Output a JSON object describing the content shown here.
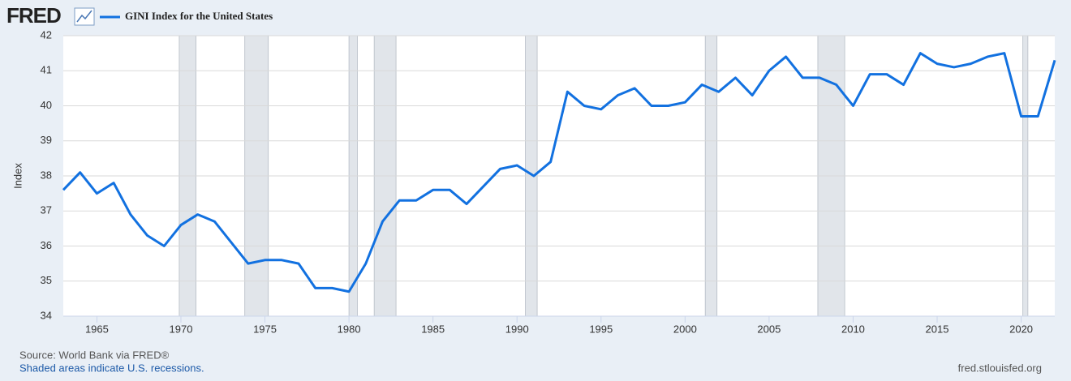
{
  "chart_data": {
    "type": "line",
    "logo": "FRED",
    "y_label": "Index",
    "source": "Source: World Bank via FRED®",
    "note": "Shaded areas indicate U.S. recessions.",
    "site": "fred.stlouisfed.org",
    "x": [
      1963,
      1964,
      1965,
      1966,
      1967,
      1968,
      1969,
      1970,
      1971,
      1972,
      1973,
      1974,
      1975,
      1976,
      1977,
      1978,
      1979,
      1980,
      1981,
      1982,
      1983,
      1984,
      1985,
      1986,
      1987,
      1988,
      1989,
      1990,
      1991,
      1992,
      1993,
      1994,
      1995,
      1996,
      1997,
      1998,
      1999,
      2000,
      2001,
      2002,
      2003,
      2004,
      2005,
      2006,
      2007,
      2008,
      2009,
      2010,
      2011,
      2012,
      2013,
      2014,
      2015,
      2016,
      2017,
      2018,
      2019,
      2020,
      2021,
      2022
    ],
    "series": [
      {
        "name": "GINI Index for the United States",
        "color": "#1271e0",
        "values": [
          37.6,
          38.1,
          37.5,
          37.8,
          36.9,
          36.3,
          36.0,
          36.6,
          36.9,
          36.7,
          36.1,
          35.5,
          35.6,
          35.6,
          35.5,
          34.8,
          34.8,
          34.7,
          35.5,
          36.7,
          37.3,
          37.3,
          37.6,
          37.6,
          37.2,
          37.7,
          38.2,
          38.3,
          38.0,
          38.4,
          40.4,
          40.0,
          39.9,
          40.3,
          40.5,
          40.0,
          40.0,
          40.1,
          40.6,
          40.4,
          40.8,
          40.3,
          41.0,
          41.4,
          40.8,
          40.8,
          40.6,
          40.0,
          40.9,
          40.9,
          40.6,
          41.5,
          41.2,
          41.1,
          41.2,
          41.4,
          41.5,
          39.7,
          39.7,
          41.3
        ]
      }
    ],
    "recessions": [
      {
        "start": 1969.9,
        "end": 1970.9
      },
      {
        "start": 1973.8,
        "end": 1975.2
      },
      {
        "start": 1980.0,
        "end": 1980.5
      },
      {
        "start": 1981.5,
        "end": 1982.8
      },
      {
        "start": 1990.5,
        "end": 1991.2
      },
      {
        "start": 2001.2,
        "end": 2001.9
      },
      {
        "start": 2007.9,
        "end": 2009.5
      },
      {
        "start": 2020.1,
        "end": 2020.4
      }
    ],
    "xlim": [
      1963,
      2022
    ],
    "xticks": [
      1965,
      1970,
      1975,
      1980,
      1985,
      1990,
      1995,
      2000,
      2005,
      2010,
      2015,
      2020
    ],
    "ylim": [
      34,
      42
    ],
    "yticks": [
      34,
      35,
      36,
      37,
      38,
      39,
      40,
      41,
      42
    ],
    "grid": true
  }
}
